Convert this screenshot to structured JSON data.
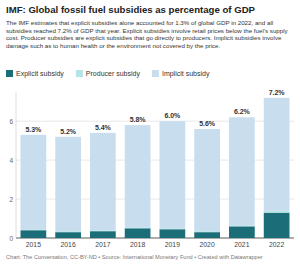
{
  "chart_data": {
    "type": "bar",
    "title": "IMF: Global fossil fuel subsidies as percentage of GDP",
    "subtitle": "The IMF estimates that explicit subsidies alone accounted for 1.3% of global GDP in 2022, and all subsidies reached 7.2% of GDP that year. Explicit subsidies involve retail prices below the fuel's supply cost. Producer subsidies are explicit subsidies that go directly to producers. Implicit subsidies involve damage such as to human health or the environment not covered by the price.",
    "source": "Chart: The Conversation, CC-BY-ND • Source: International Monetary Fund • Created with Datawrapper",
    "categories": [
      "2015",
      "2016",
      "2017",
      "2018",
      "2019",
      "2020",
      "2021",
      "2022"
    ],
    "series": [
      {
        "name": "Explicit subsidy",
        "color": "#1b6d77",
        "values": [
          0.4,
          0.3,
          0.35,
          0.5,
          0.45,
          0.3,
          0.6,
          1.3
        ]
      },
      {
        "name": "Producer subsidy",
        "color": "#b3e4e6",
        "values": [
          0.05,
          0.05,
          0.05,
          0.05,
          0.05,
          0.05,
          0.05,
          0.1
        ]
      },
      {
        "name": "Implicit subsidy",
        "color": "#c8ddee",
        "values": [
          4.85,
          4.85,
          5.0,
          5.25,
          5.5,
          5.25,
          5.55,
          5.8
        ]
      }
    ],
    "totals": {
      "values": [
        5.3,
        5.2,
        5.4,
        5.8,
        6.0,
        5.6,
        6.2,
        7.2
      ],
      "value_labels": [
        "5.3%",
        "5.2%",
        "5.4%",
        "5.8%",
        "6.0%",
        "5.6%",
        "6.2%",
        "7.2%"
      ]
    },
    "stacked": true,
    "ylim": [
      0,
      7.5
    ],
    "yticks": [
      0,
      2,
      4,
      6
    ],
    "grid": true,
    "legend": "top-left"
  }
}
